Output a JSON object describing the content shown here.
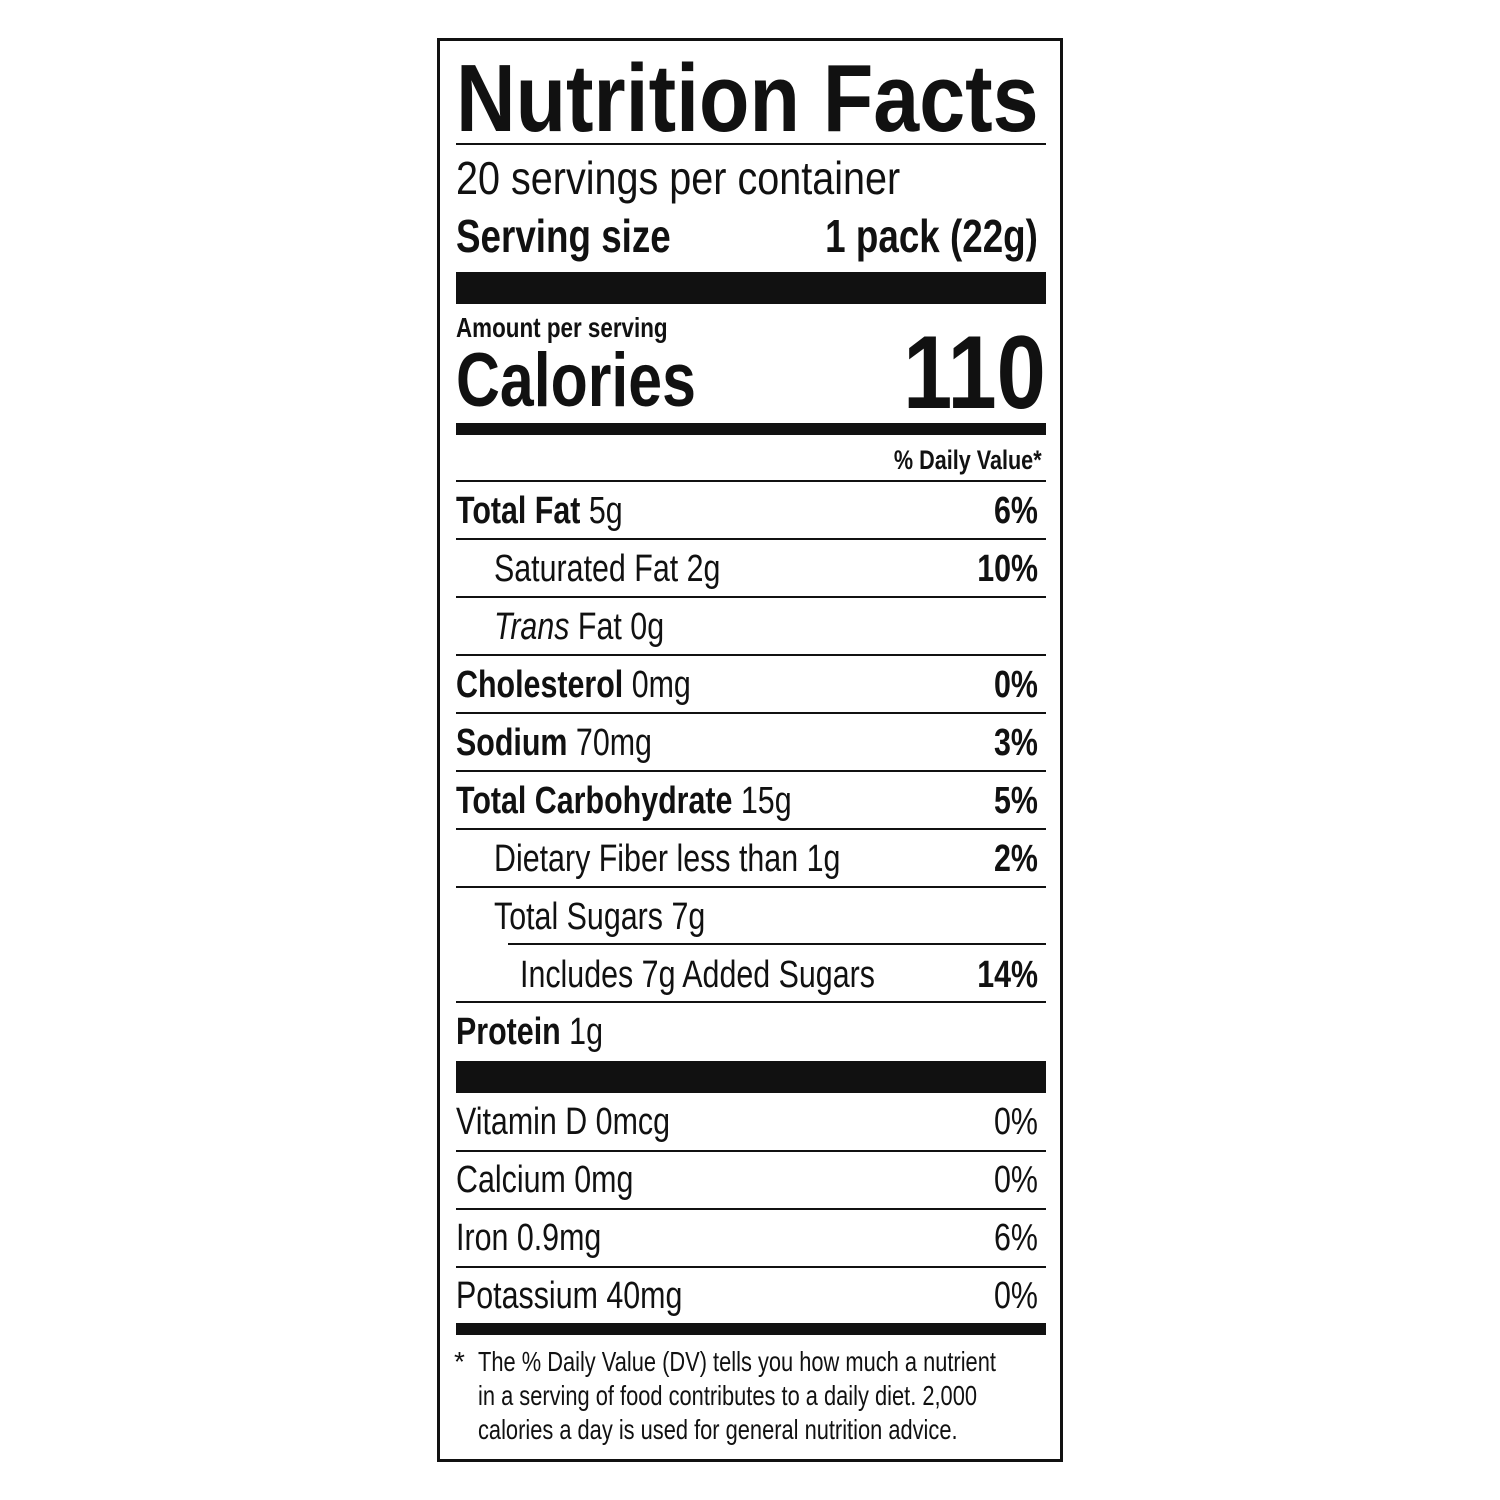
{
  "title": "Nutrition Facts",
  "servings_per_container": "20 servings per container",
  "serving_size": {
    "label": "Serving size",
    "value": "1 pack (22g)"
  },
  "amount_per_serving": "Amount per serving",
  "calories": {
    "label": "Calories",
    "value": "110"
  },
  "daily_value_header": "% Daily Value*",
  "nutrients": [
    {
      "name": "Total Fat",
      "amount": "5g",
      "dv": "6%"
    },
    {
      "name": "Saturated Fat",
      "amount": "2g",
      "dv": "10%"
    },
    {
      "name": "Trans",
      "name_rest": "Fat",
      "amount": "0g",
      "dv": ""
    },
    {
      "name": "Cholesterol",
      "amount": "0mg",
      "dv": "0%"
    },
    {
      "name": "Sodium",
      "amount": "70mg",
      "dv": "3%"
    },
    {
      "name": "Total Carbohydrate",
      "amount": "15g",
      "dv": "5%"
    },
    {
      "name": "Dietary Fiber less than",
      "amount": "1g",
      "dv": "2%"
    },
    {
      "name": "Total Sugars",
      "amount": "7g",
      "dv": ""
    },
    {
      "name": "Includes 7g Added Sugars",
      "amount": "",
      "dv": "14%"
    },
    {
      "name": "Protein",
      "amount": "1g",
      "dv": ""
    }
  ],
  "vitamins": [
    {
      "text": "Vitamin D 0mcg",
      "dv": "0%"
    },
    {
      "text": "Calcium 0mg",
      "dv": "0%"
    },
    {
      "text": "Iron 0.9mg",
      "dv": "6%"
    },
    {
      "text": "Potassium 40mg",
      "dv": "0%"
    }
  ],
  "footnote": {
    "marker": "*",
    "line1": "The % Daily Value (DV) tells you how much a nutrient",
    "line2": "in a serving of food contributes to a daily diet. 2,000",
    "line3": "calories a day is used for general nutrition advice."
  }
}
